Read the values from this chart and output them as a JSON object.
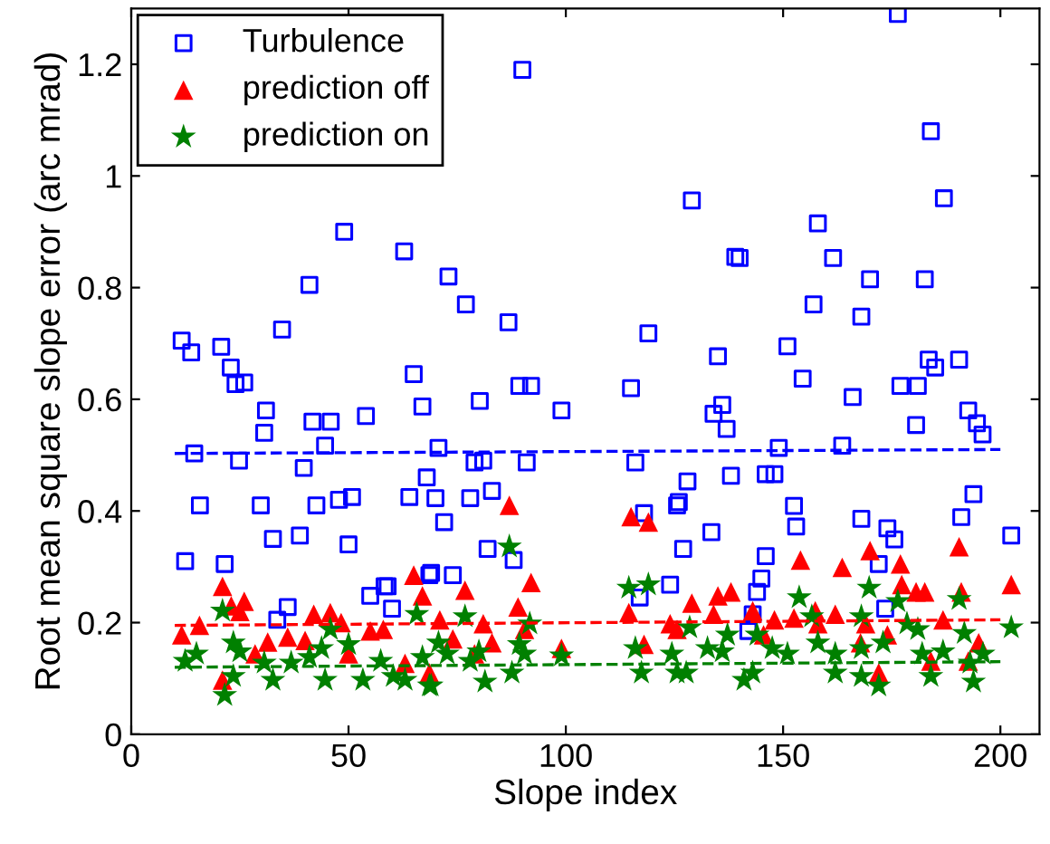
{
  "chart_data": {
    "type": "scatter",
    "xlabel": "Slope index",
    "ylabel": "Root mean square slope error (arc mrad)",
    "xlim": [
      0,
      209
    ],
    "ylim": [
      0,
      1.3
    ],
    "xticks": [
      0,
      50,
      100,
      150,
      200
    ],
    "yticks": [
      0,
      0.2,
      0.4,
      0.6,
      0.8,
      1,
      1.2
    ],
    "grid": false,
    "legend": "top left",
    "series": [
      {
        "name": "Turbulence",
        "color": "#0000ff",
        "marker": "square",
        "x": [
          11.6,
          13.8,
          20.7,
          22.9,
          24,
          26,
          14.5,
          24.8,
          44.6,
          30.6,
          31,
          34.7,
          41,
          41.7,
          45.9,
          49,
          54,
          62.8,
          65,
          67,
          39.7,
          15.8,
          29.8,
          42.6,
          47.8,
          50.8,
          32.6,
          38.8,
          50,
          12.4,
          21.5,
          33.6,
          36,
          55,
          58.3,
          59,
          60,
          64,
          68,
          68.6,
          90,
          73,
          77,
          86.8,
          80.2,
          89.3,
          92,
          99,
          115,
          119,
          129,
          139,
          135,
          136,
          134,
          137,
          70.7,
          79,
          81,
          91,
          116,
          70,
          78,
          83,
          72,
          82,
          88,
          69,
          74,
          118,
          125.6,
          126,
          128,
          138,
          133.5,
          127,
          124,
          117,
          176.4,
          184,
          187,
          158,
          161.5,
          140,
          170,
          182.6,
          157,
          168,
          151,
          154.5,
          166,
          183.5,
          185,
          190.5,
          177,
          181,
          180.6,
          192.6,
          194.6,
          195.9,
          149,
          163.6,
          146,
          148,
          152.5,
          153,
          168,
          174,
          175.6,
          172,
          193.8,
          191,
          202.5,
          146,
          145,
          144,
          143,
          142,
          173.5
        ],
        "values": [
          0.705,
          0.684,
          0.694,
          0.657,
          0.627,
          0.63,
          0.503,
          0.49,
          0.517,
          0.54,
          0.58,
          0.725,
          0.805,
          0.56,
          0.56,
          0.9,
          0.57,
          0.865,
          0.645,
          0.587,
          0.477,
          0.41,
          0.41,
          0.41,
          0.42,
          0.425,
          0.35,
          0.356,
          0.34,
          0.31,
          0.305,
          0.205,
          0.228,
          0.248,
          0.265,
          0.265,
          0.225,
          0.425,
          0.46,
          0.285,
          1.19,
          0.82,
          0.77,
          0.738,
          0.597,
          0.624,
          0.624,
          0.58,
          0.62,
          0.718,
          0.956,
          0.855,
          0.677,
          0.59,
          0.574,
          0.547,
          0.513,
          0.487,
          0.49,
          0.487,
          0.487,
          0.423,
          0.423,
          0.436,
          0.38,
          0.332,
          0.312,
          0.289,
          0.285,
          0.396,
          0.41,
          0.416,
          0.453,
          0.463,
          0.362,
          0.332,
          0.268,
          0.245,
          1.29,
          1.08,
          0.96,
          0.915,
          0.853,
          0.853,
          0.815,
          0.815,
          0.77,
          0.748,
          0.695,
          0.637,
          0.604,
          0.671,
          0.657,
          0.671,
          0.624,
          0.624,
          0.554,
          0.58,
          0.557,
          0.537,
          0.513,
          0.517,
          0.466,
          0.466,
          0.409,
          0.372,
          0.386,
          0.369,
          0.349,
          0.305,
          0.43,
          0.389,
          0.356,
          0.319,
          0.279,
          0.255,
          0.215,
          0.185,
          0.225
        ]
      },
      {
        "name": "prediction off",
        "color": "#ff0000",
        "marker": "triangle",
        "x": [
          21,
          11.6,
          15.7,
          23,
          26,
          25,
          31.4,
          36,
          40,
          42,
          45.8,
          48.3,
          55,
          58,
          65,
          67,
          28.5,
          21,
          50,
          63,
          68.6,
          87,
          92,
          76.8,
          89,
          71,
          81,
          74,
          83,
          99,
          115,
          119,
          114.5,
          124,
          129,
          135,
          138,
          134,
          118,
          125.6,
          79,
          90.5,
          154,
          163.6,
          170,
          177,
          190.5,
          202.5,
          180.6,
          182.6,
          177.3,
          191,
          157.4,
          162,
          148,
          152.5,
          169,
          186.8,
          195,
          158,
          143,
          145.5,
          172,
          184,
          192.6,
          167.8,
          174
        ],
        "values": [
          0.265,
          0.178,
          0.195,
          0.23,
          0.238,
          0.22,
          0.165,
          0.174,
          0.168,
          0.215,
          0.218,
          0.2,
          0.185,
          0.188,
          0.285,
          0.248,
          0.144,
          0.097,
          0.144,
          0.127,
          0.11,
          0.41,
          0.272,
          0.258,
          0.228,
          0.205,
          0.198,
          0.171,
          0.164,
          0.154,
          0.39,
          0.38,
          0.218,
          0.198,
          0.235,
          0.248,
          0.255,
          0.215,
          0.161,
          0.188,
          0.144,
          0.188,
          0.312,
          0.299,
          0.329,
          0.305,
          0.336,
          0.268,
          0.255,
          0.255,
          0.268,
          0.255,
          0.221,
          0.215,
          0.205,
          0.208,
          0.198,
          0.205,
          0.164,
          0.198,
          0.221,
          0.178,
          0.11,
          0.131,
          0.131,
          0.164,
          0.178
        ]
      },
      {
        "name": "prediction on",
        "color": "#008000",
        "marker": "star",
        "x": [
          12.4,
          15,
          21,
          23.5,
          25,
          21.5,
          23.5,
          30.6,
          32.6,
          36.8,
          41,
          43.8,
          44.6,
          45.8,
          50,
          53.3,
          57.4,
          60.3,
          63,
          65.7,
          67,
          68.6,
          87,
          76.8,
          91.7,
          70.7,
          72.7,
          69,
          78,
          81.4,
          80,
          87.6,
          89.3,
          90.5,
          99,
          114.5,
          119,
          116,
          117.4,
          124.4,
          125.6,
          127.7,
          128.5,
          132.6,
          136,
          137.2,
          153.7,
          169.8,
          190.5,
          202.5,
          176.4,
          144,
          147.5,
          151,
          141,
          143,
          158,
          162,
          162,
          168,
          168,
          172,
          173,
          181,
          182,
          184,
          186.8,
          191.7,
          193,
          193.8,
          196,
          156.6,
          168,
          178.5
        ],
        "values": [
          0.131,
          0.144,
          0.221,
          0.164,
          0.148,
          0.07,
          0.104,
          0.128,
          0.097,
          0.128,
          0.138,
          0.154,
          0.097,
          0.188,
          0.161,
          0.097,
          0.131,
          0.104,
          0.097,
          0.215,
          0.138,
          0.087,
          0.336,
          0.211,
          0.198,
          0.164,
          0.144,
          0.087,
          0.131,
          0.094,
          0.148,
          0.11,
          0.161,
          0.144,
          0.141,
          0.262,
          0.268,
          0.154,
          0.11,
          0.144,
          0.11,
          0.11,
          0.191,
          0.154,
          0.148,
          0.178,
          0.245,
          0.262,
          0.242,
          0.191,
          0.238,
          0.178,
          0.154,
          0.144,
          0.097,
          0.11,
          0.164,
          0.144,
          0.11,
          0.154,
          0.104,
          0.087,
          0.164,
          0.188,
          0.144,
          0.104,
          0.148,
          0.181,
          0.128,
          0.094,
          0.144,
          0.211,
          0.211,
          0.198
        ]
      },
      {
        "type": "line",
        "color": "#0000ff",
        "line_style": "dashed",
        "marker": "none",
        "x": [
          10,
          200
        ],
        "values": [
          0.503,
          0.51
        ]
      },
      {
        "type": "line",
        "color": "#ff0000",
        "line_style": "dashed",
        "marker": "none",
        "x": [
          10,
          200
        ],
        "values": [
          0.195,
          0.205
        ]
      },
      {
        "type": "line",
        "color": "#008000",
        "line_style": "dashed",
        "marker": "none",
        "x": [
          10,
          200
        ],
        "values": [
          0.12,
          0.13
        ]
      }
    ]
  }
}
